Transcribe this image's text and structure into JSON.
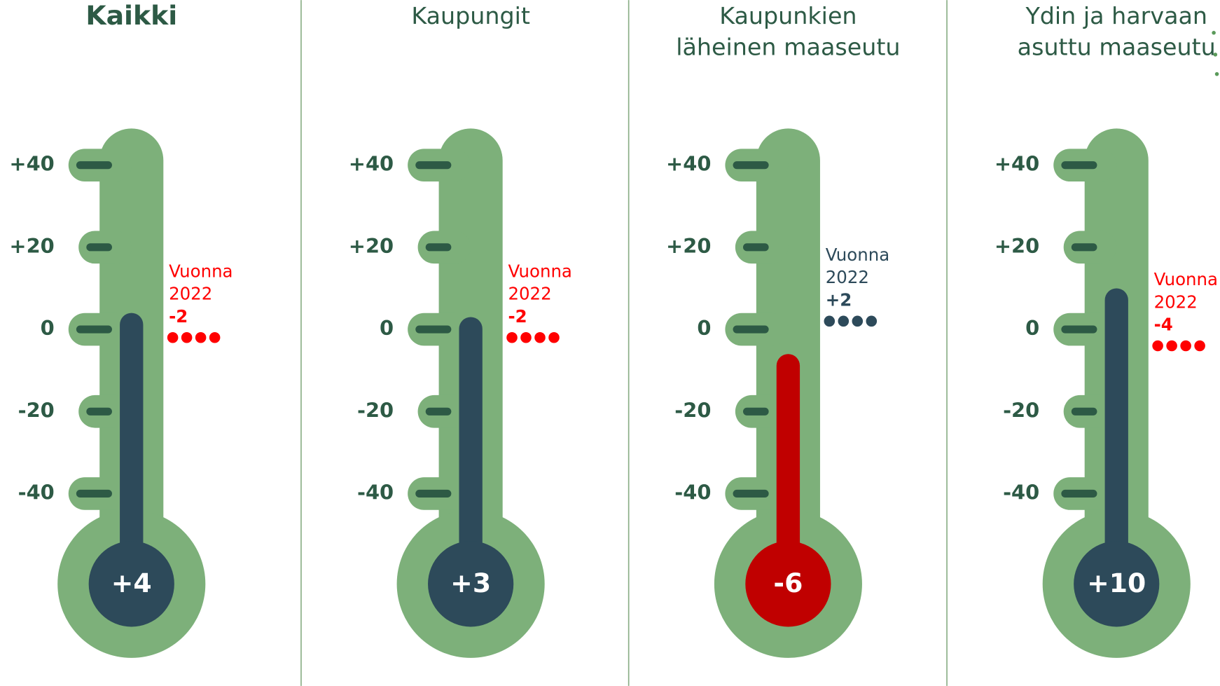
{
  "chart_data": [
    {
      "type": "thermometer",
      "title": [
        "Kaikki"
      ],
      "title_bold": true,
      "value": 4,
      "value_label": "+4",
      "color": "#2d4a5a",
      "previous_label": [
        "Vuonna",
        "2022"
      ],
      "previous_value": -2,
      "previous_value_label": "-2",
      "previous_color": "#ff0000",
      "ylim": [
        -40,
        40
      ],
      "yticks": [
        {
          "value": -40,
          "label": "-40"
        },
        {
          "value": -20,
          "label": "-20"
        },
        0,
        {
          "value": 20,
          "label": "+20"
        },
        {
          "value": 40,
          "label": "+40"
        }
      ]
    },
    {
      "type": "thermometer",
      "title": [
        "Kaupungit"
      ],
      "title_bold": false,
      "value": 3,
      "value_label": "+3",
      "color": "#2d4a5a",
      "previous_label": [
        "Vuonna",
        "2022"
      ],
      "previous_value": -2,
      "previous_value_label": "-2",
      "previous_color": "#ff0000",
      "ylim": [
        -40,
        40
      ],
      "yticks": [
        {
          "value": -40,
          "label": "-40"
        },
        {
          "value": -20,
          "label": "-20"
        },
        0,
        {
          "value": 20,
          "label": "+20"
        },
        {
          "value": 40,
          "label": "+40"
        }
      ]
    },
    {
      "type": "thermometer",
      "title": [
        "Kaupunkien",
        "läheinen maaseutu"
      ],
      "title_bold": false,
      "value": -6,
      "value_label": "-6",
      "color": "#c00000",
      "previous_label": [
        "Vuonna",
        "2022"
      ],
      "previous_value": 2,
      "previous_value_label": "+2",
      "previous_color": "#2d4a5a",
      "ylim": [
        -40,
        40
      ],
      "yticks": [
        {
          "value": -40,
          "label": "-40"
        },
        {
          "value": -20,
          "label": "-20"
        },
        0,
        {
          "value": 20,
          "label": "+20"
        },
        {
          "value": 40,
          "label": "+40"
        }
      ]
    },
    {
      "type": "thermometer",
      "title": [
        "Ydin ja harvaan",
        "asuttu maaseutu"
      ],
      "title_bold": false,
      "value": 10,
      "value_label": "+10",
      "color": "#2d4a5a",
      "previous_label": [
        "Vuonna",
        "2022"
      ],
      "previous_value": -4,
      "previous_value_label": "-4",
      "previous_color": "#ff0000",
      "ylim": [
        -40,
        40
      ],
      "yticks": [
        {
          "value": -40,
          "label": "-40"
        },
        {
          "value": -20,
          "label": "-20"
        },
        0,
        {
          "value": 20,
          "label": "+20"
        },
        {
          "value": 40,
          "label": "+40"
        }
      ]
    }
  ]
}
